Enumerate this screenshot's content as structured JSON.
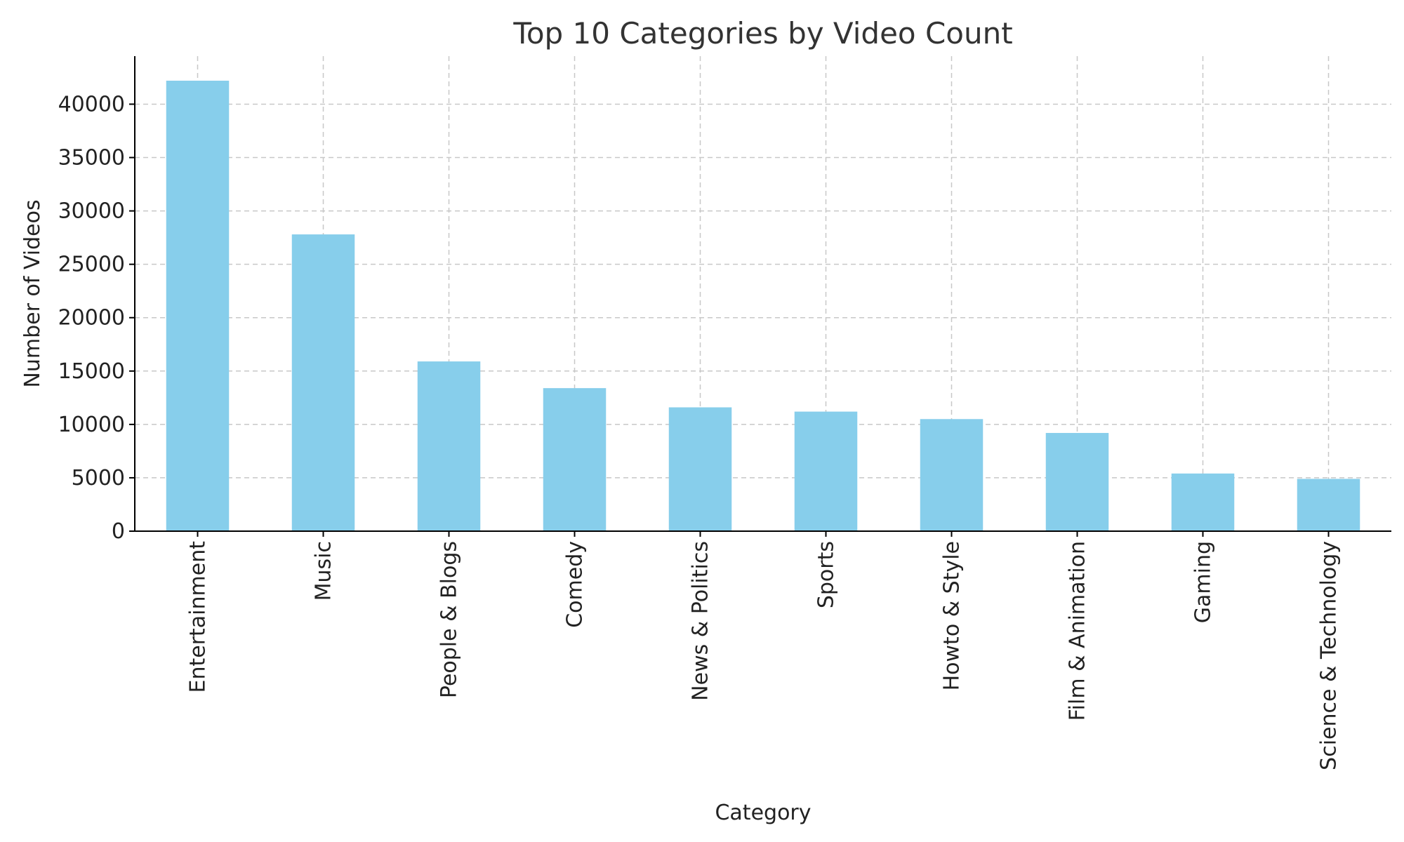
{
  "chart_data": {
    "type": "bar",
    "title": "Top 10 Categories by Video Count",
    "xlabel": "Category",
    "ylabel": "Number of Videos",
    "categories": [
      "Entertainment",
      "Music",
      "People & Blogs",
      "Comedy",
      "News & Politics",
      "Sports",
      "Howto & Style",
      "Film & Animation",
      "Gaming",
      "Science & Technology"
    ],
    "values": [
      42200,
      27800,
      15900,
      13400,
      11600,
      11200,
      10500,
      9200,
      5400,
      4900
    ],
    "ylim": [
      0,
      44500
    ],
    "yticks": [
      0,
      5000,
      10000,
      15000,
      20000,
      25000,
      30000,
      35000,
      40000
    ],
    "ytick_labels": [
      "0",
      "5000",
      "10000",
      "15000",
      "20000",
      "25000",
      "30000",
      "35000",
      "40000"
    ],
    "grid": true,
    "bar_color": "#87CEEB",
    "title_color": "#333333"
  }
}
